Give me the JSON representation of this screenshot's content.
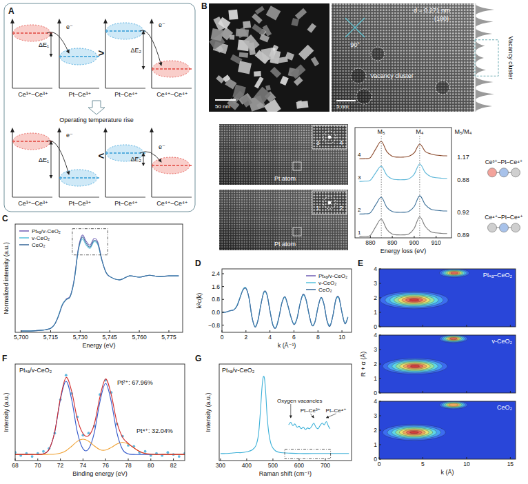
{
  "panel_letters": [
    "A",
    "B",
    "C",
    "D",
    "E",
    "F",
    "G"
  ],
  "diagram": {
    "levels_top": [
      "Ce³⁺–Ce³⁺",
      "Pt–Ce³⁺",
      "Pt–Ce⁴⁺",
      "Ce⁴⁺–Ce⁴⁺"
    ],
    "levels_bottom": [
      "Ce³⁺–Ce³⁺",
      "Pt–Ce³⁺",
      "Pt–Ce⁴⁺",
      "Ce⁴⁺–Ce⁴⁺"
    ],
    "gaps": [
      "ΔE₁",
      "ΔE₂"
    ],
    "electron": "e⁻",
    "relation_top": ">",
    "relation_bottom": "<",
    "transition": "Operating temperature rise"
  },
  "micrographs": {
    "overview": {
      "scale_bar": "50 nm"
    },
    "lattice": {
      "scale_bar": "5 nm",
      "spacing": "d = 0.271 nm",
      "plane": "(100)",
      "angle": "90°",
      "feature": "Vacancy cluster"
    },
    "profile": {
      "label": "Vacancy cluster",
      "peaks": [
        0.9,
        0.85,
        0.8,
        0.45,
        0.4,
        0.5,
        0.85,
        0.9,
        0.8
      ]
    },
    "atoms": [
      {
        "label": "Pt atom",
        "sites": [
          "3",
          "4"
        ]
      },
      {
        "label": "Pt atom",
        "sites": [
          "1",
          "2"
        ]
      }
    ]
  },
  "bonding": {
    "ratio_header": "M₅/M₄",
    "ratios": [
      1.17,
      0.88,
      0.92,
      0.89
    ],
    "configs": [
      "Ce³⁺–Pt–Ce⁴⁺",
      "Ce⁴⁺–Pt–Ce⁴⁺"
    ]
  },
  "chart_data": [
    {
      "type": "line",
      "x_label": "Energy loss (eV)",
      "x": [
        875,
        877.5,
        880,
        882.5,
        885,
        887.5,
        890,
        892.5,
        895,
        897.5,
        900,
        902.5,
        905,
        907.5,
        910,
        912.5,
        915
      ],
      "xlim": [
        873,
        917
      ],
      "xticks": [
        880,
        890,
        900,
        910
      ],
      "ylim": [
        0,
        4.4
      ],
      "tick_labels": "x",
      "peaks": [
        {
          "label": "M₅",
          "x": 885
        },
        {
          "label": "M₄",
          "x": 902.5
        }
      ],
      "series": [
        {
          "name": "4",
          "color": "#8b4a2c",
          "values": [
            3.15,
            3.16,
            3.2,
            3.55,
            3.85,
            3.44,
            3.25,
            3.22,
            3.22,
            3.25,
            3.39,
            3.74,
            3.45,
            3.35,
            3.3,
            3.28,
            3.27
          ]
        },
        {
          "name": "3",
          "color": "#5bb6d8",
          "values": [
            2.25,
            2.26,
            2.3,
            2.6,
            2.86,
            2.5,
            2.35,
            2.32,
            2.32,
            2.35,
            2.54,
            2.95,
            2.61,
            2.45,
            2.4,
            2.38,
            2.37
          ]
        },
        {
          "name": "2",
          "color": "#3b6f98",
          "values": [
            0.95,
            0.96,
            1.0,
            1.33,
            1.62,
            1.22,
            1.05,
            1.02,
            1.02,
            1.05,
            1.25,
            1.68,
            1.33,
            1.15,
            1.1,
            1.08,
            1.07
          ]
        },
        {
          "name": "1",
          "color": "#7a7a7a",
          "values": [
            0.05,
            0.06,
            0.1,
            0.45,
            0.75,
            0.34,
            0.15,
            0.12,
            0.12,
            0.15,
            0.38,
            0.84,
            0.46,
            0.25,
            0.2,
            0.18,
            0.17
          ]
        }
      ]
    },
    {
      "type": "line",
      "x_label": "Energy (eV)",
      "y_label": "Normalized intensity (a.u.)",
      "x": [
        5700,
        5705,
        5710,
        5712.5,
        5715,
        5717,
        5719,
        5721,
        5723,
        5725,
        5727,
        5729,
        5731,
        5733,
        5735,
        5737,
        5739,
        5741,
        5743,
        5745,
        5750,
        5755,
        5760,
        5765,
        5770,
        5775,
        5780
      ],
      "xlim": [
        5697,
        5782
      ],
      "xticks": [
        {
          "value": 5700,
          "label": "5,700"
        },
        {
          "value": 5715,
          "label": "5,715"
        },
        {
          "value": 5730,
          "label": "5,730"
        },
        {
          "value": 5745,
          "label": "5,745"
        },
        {
          "value": 5760,
          "label": "5,760"
        },
        {
          "value": 5775,
          "label": "5,775"
        }
      ],
      "ylim": [
        0,
        1.65
      ],
      "tick_labels": "x",
      "legend": "top-left",
      "highlight_x": [
        5726,
        5744
      ],
      "highlight_y": [
        1.18,
        1.58
      ],
      "series": [
        {
          "name": "Ptₛₐ/v-CeO₂",
          "color": "#7666b8",
          "values": [
            0.02,
            0.02,
            0.03,
            0.04,
            0.06,
            0.12,
            0.25,
            0.42,
            0.51,
            0.56,
            0.82,
            1.27,
            1.48,
            1.39,
            1.33,
            1.43,
            1.37,
            1.11,
            0.92,
            0.85,
            0.8,
            0.86,
            0.84,
            0.87,
            0.85,
            0.86,
            0.86
          ]
        },
        {
          "name": "v-CeO₂",
          "color": "#5fc4dd",
          "values": [
            0.02,
            0.02,
            0.03,
            0.04,
            0.06,
            0.12,
            0.26,
            0.43,
            0.5,
            0.55,
            0.8,
            1.24,
            1.42,
            1.33,
            1.28,
            1.38,
            1.33,
            1.1,
            0.92,
            0.85,
            0.8,
            0.86,
            0.84,
            0.87,
            0.85,
            0.86,
            0.86
          ]
        },
        {
          "name": "CeO₂",
          "color": "#3f6e9e",
          "values": [
            0.02,
            0.02,
            0.03,
            0.04,
            0.06,
            0.12,
            0.25,
            0.42,
            0.5,
            0.55,
            0.8,
            1.25,
            1.45,
            1.36,
            1.3,
            1.4,
            1.35,
            1.1,
            0.92,
            0.85,
            0.8,
            0.86,
            0.84,
            0.87,
            0.85,
            0.86,
            0.86
          ]
        }
      ]
    },
    {
      "type": "line",
      "x_label": "k (Å⁻¹)",
      "y_label": "k²c(k)",
      "x": [
        0,
        0.25,
        0.5,
        0.75,
        1,
        1.25,
        1.5,
        1.75,
        2,
        2.25,
        2.5,
        2.75,
        3,
        3.25,
        3.5,
        3.75,
        4,
        4.25,
        4.5,
        4.75,
        5,
        5.25,
        5.5,
        5.75,
        6,
        6.25,
        6.5,
        6.75,
        7,
        7.25,
        7.5,
        7.75,
        8,
        8.25,
        8.5,
        8.75,
        9,
        9.25,
        9.5,
        9.75,
        10,
        10.25,
        10.5
      ],
      "xlim": [
        0,
        10.8
      ],
      "xticks": [
        0,
        2,
        4,
        6,
        8,
        10
      ],
      "ylim": [
        -1.25,
        2.7
      ],
      "yticks": [
        {
          "value": -0.8,
          "label": "−0.8"
        },
        {
          "value": 0,
          "label": "0.0"
        },
        0.8,
        1.6,
        2.4
      ],
      "legend": "top-right",
      "series": [
        {
          "name": "Ptₛₐ/v-CeO₂",
          "color": "#7666b8",
          "values": [
            0,
            0,
            0.05,
            0.1,
            0.15,
            0.4,
            0.9,
            1.4,
            1.5,
            0.9,
            -0.3,
            -0.9,
            -0.5,
            0.5,
            1.25,
            1.1,
            0.1,
            -0.8,
            -0.95,
            -0.3,
            0.6,
            0.95,
            0.4,
            -0.3,
            -0.75,
            -0.4,
            0.5,
            1.1,
            0.8,
            -0.1,
            -0.8,
            -0.6,
            0.3,
            0.9,
            0.5,
            -0.5,
            -0.85,
            -0.2,
            0.8,
            0.9,
            0.0,
            -0.7,
            -0.3
          ]
        },
        {
          "name": "v-CeO₂",
          "color": "#5fc4dd",
          "values": [
            0,
            0,
            0.04,
            0.1,
            0.16,
            0.42,
            0.92,
            1.42,
            1.52,
            0.88,
            -0.32,
            -0.88,
            -0.48,
            0.52,
            1.22,
            1.08,
            0.12,
            -0.78,
            -0.92,
            -0.28,
            0.62,
            0.92,
            0.38,
            -0.32,
            -0.72,
            -0.38,
            0.52,
            1.05,
            0.78,
            -0.12,
            -0.78,
            -0.58,
            0.32,
            0.88,
            0.48,
            -0.48,
            -0.8,
            -0.22,
            0.78,
            0.85,
            0.02,
            -0.68,
            -0.28
          ]
        },
        {
          "name": "CeO₂",
          "color": "#3f6e9e",
          "values": [
            0,
            0,
            0.05,
            0.11,
            0.15,
            0.38,
            0.88,
            1.38,
            1.48,
            0.92,
            -0.28,
            -0.92,
            -0.52,
            0.48,
            1.28,
            1.12,
            0.08,
            -0.82,
            -0.97,
            -0.32,
            0.58,
            0.97,
            0.42,
            -0.28,
            -0.77,
            -0.42,
            0.48,
            1.12,
            0.82,
            -0.08,
            -0.82,
            -0.62,
            0.28,
            0.92,
            0.52,
            -0.52,
            -0.88,
            -0.18,
            0.82,
            0.92,
            -0.02,
            -0.72,
            -0.32
          ]
        }
      ]
    },
    {
      "type": "wavelet",
      "title": "Ptₛₐ–CeO₂",
      "xlim": [
        0,
        15.6
      ],
      "xticks": [
        0,
        5,
        10,
        15
      ],
      "ylim": [
        0,
        4
      ],
      "yticks": [
        0,
        1,
        2,
        3,
        4
      ],
      "tick_labels": "y",
      "maxima": [
        {
          "k": 4,
          "r": 1.85,
          "k_width": 3.9,
          "r_width": 0.6,
          "intensity": 1
        },
        {
          "k": 8.6,
          "r": 3.72,
          "k_width": 1.7,
          "r_width": 0.3,
          "intensity": 0.85
        }
      ]
    },
    {
      "type": "wavelet",
      "title": "v-CeO₂",
      "y_label": "R + α (Å)",
      "xlim": [
        0,
        15.6
      ],
      "xticks": [
        0,
        5,
        10,
        15
      ],
      "ylim": [
        0,
        4
      ],
      "yticks": [
        0,
        1,
        2,
        3,
        4
      ],
      "tick_labels": "y",
      "maxima": [
        {
          "k": 4.1,
          "r": 1.85,
          "k_width": 3.7,
          "r_width": 0.55,
          "intensity": 1
        },
        {
          "k": 8.5,
          "r": 3.75,
          "k_width": 1.6,
          "r_width": 0.28,
          "intensity": 0.85
        }
      ]
    },
    {
      "type": "wavelet",
      "title": "CeO₂",
      "x_label": "k (Å)",
      "xlim": [
        0,
        15.6
      ],
      "xticks": [
        0,
        5,
        10,
        15
      ],
      "ylim": [
        0,
        4
      ],
      "yticks": [
        0,
        1,
        2,
        3,
        4
      ],
      "maxima": [
        {
          "k": 4,
          "r": 1.85,
          "k_width": 3.6,
          "r_width": 0.55,
          "intensity": 1
        },
        {
          "k": 8.5,
          "r": 3.75,
          "k_width": 1.6,
          "r_width": 0.28,
          "intensity": 0.8
        }
      ]
    },
    {
      "type": "line",
      "title": "Ptₛₐ/v-CeO₂",
      "x_label": "Binding energy (eV)",
      "y_label": "Intensity (a.u.)",
      "x": [
        68,
        68.5,
        69,
        69.5,
        70,
        70.5,
        71,
        71.5,
        72,
        72.5,
        73,
        73.5,
        74,
        74.5,
        75,
        75.5,
        76,
        76.5,
        77,
        77.5,
        78,
        78.5,
        79,
        79.5,
        80,
        80.5,
        81,
        81.5,
        82,
        82.5,
        83
      ],
      "xlim": [
        68,
        83
      ],
      "xticks": [
        68,
        70,
        72,
        74,
        76,
        78,
        80,
        82
      ],
      "ylim": [
        0,
        0.95
      ],
      "tick_labels": "x",
      "annotations": [
        "Pt²⁺: 67.96%",
        "Pt⁴⁺: 32.04%"
      ],
      "series": [
        {
          "type": "scatter",
          "marker": "circle",
          "color": "#5fb8e0",
          "values": [
            0.08,
            0.05,
            0.07,
            0.04,
            0.07,
            0.09,
            0.12,
            0.27,
            0.6,
            0.84,
            0.66,
            0.43,
            0.25,
            0.27,
            0.34,
            0.65,
            0.79,
            0.67,
            0.36,
            0.24,
            0.15,
            0.14,
            0.08,
            0.09,
            0.05,
            0.07,
            0.05,
            0.08,
            0.06,
            0.04,
            0.07
          ]
        },
        {
          "color": "#2f55c9",
          "values": [
            0.06,
            0.06,
            0.06,
            0.06,
            0.06,
            0.066,
            0.11,
            0.28,
            0.6,
            0.78,
            0.6,
            0.28,
            0.116,
            0.115,
            0.274,
            0.58,
            0.76,
            0.58,
            0.274,
            0.109,
            0.066,
            0.06,
            0.06,
            0.06,
            0.06,
            0.06,
            0.06,
            0.06,
            0.06,
            0.06,
            0.06
          ]
        },
        {
          "color": "#f0a030",
          "values": [
            0.06,
            0.06,
            0.06,
            0.06,
            0.06,
            0.06,
            0.061,
            0.063,
            0.073,
            0.097,
            0.141,
            0.189,
            0.21,
            0.19,
            0.144,
            0.107,
            0.103,
            0.128,
            0.163,
            0.18,
            0.163,
            0.125,
            0.09,
            0.07,
            0.063,
            0.06,
            0.06,
            0.06,
            0.06,
            0.06,
            0.06
          ]
        },
        {
          "color": "#d22b2b",
          "values": [
            0.06,
            0.06,
            0.06,
            0.06,
            0.06,
            0.066,
            0.111,
            0.283,
            0.613,
            0.817,
            0.681,
            0.409,
            0.266,
            0.245,
            0.358,
            0.627,
            0.803,
            0.648,
            0.377,
            0.229,
            0.169,
            0.125,
            0.09,
            0.07,
            0.063,
            0.06,
            0.06,
            0.06,
            0.06,
            0.06,
            0.06
          ]
        }
      ]
    },
    {
      "type": "line",
      "title": "Ptₛₐ/v-CeO₂",
      "x_label": "Raman shift (cm⁻¹)",
      "y_label": "Intensity (a.u.)",
      "x": [
        300,
        320,
        340,
        360,
        380,
        400,
        420,
        435,
        445,
        452,
        458,
        463,
        468,
        473,
        478,
        485,
        495,
        510,
        530,
        560,
        600,
        650,
        700,
        750,
        790
      ],
      "xlim": [
        295,
        800
      ],
      "xticks": [
        300,
        400,
        500,
        600,
        700
      ],
      "ylim": [
        0,
        1.1
      ],
      "tick_labels": "x",
      "highlight_x": [
        545,
        720
      ],
      "highlight_y": [
        0.02,
        0.13
      ],
      "series": [
        {
          "color": "#3bb0d8",
          "values": [
            0.08,
            0.08,
            0.085,
            0.09,
            0.09,
            0.1,
            0.12,
            0.17,
            0.3,
            0.55,
            0.82,
            0.95,
            0.93,
            0.75,
            0.5,
            0.3,
            0.17,
            0.11,
            0.09,
            0.085,
            0.08,
            0.08,
            0.08,
            0.08,
            0.08
          ]
        }
      ],
      "inset": {
        "x": [
          560,
          568,
          576,
          584,
          592,
          600,
          608,
          616,
          624,
          632,
          640,
          648,
          656,
          664,
          672,
          680,
          688,
          696,
          704,
          712,
          718
        ],
        "values": [
          0.6,
          0.75,
          0.55,
          0.65,
          0.45,
          0.5,
          0.35,
          0.45,
          0.3,
          0.4,
          0.35,
          0.5,
          0.7,
          0.45,
          0.35,
          0.55,
          0.7,
          0.6,
          0.8,
          0.5,
          0.35
        ],
        "ylim": [
          0,
          1
        ]
      },
      "annotations": [
        {
          "text": "Oxygen vacancies",
          "x": 568
        },
        {
          "text": "Pt–Ce³⁺",
          "x": 656
        },
        {
          "text": "Pt–Ce⁴⁺",
          "x": 704
        }
      ]
    }
  ]
}
